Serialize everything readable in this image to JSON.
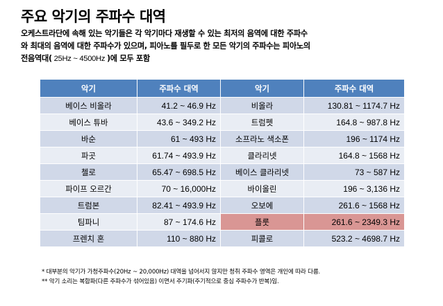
{
  "title": "주요 악기의 주파수 대역",
  "intro": {
    "line1": "오케스트라단에 속해 있는 악기들은 각 악기마다 재생할 수 있는 최저의 음역에 대한 주파수",
    "line2": "와 최대의 음역에 대한 주파수가 있으며, 피아노를 필두로 한 모든 악기의 주파수는 피아노의",
    "line3_pre": "전음역대(",
    "line3_range": " 25Hz ~ 4500Hz ",
    "line3_post": ")에 모두 포함"
  },
  "table": {
    "headers": [
      "악기",
      "주파수 대역",
      "악기",
      "주파수 대역"
    ],
    "rows": [
      {
        "i1": "베이스 비올라",
        "f1": "41.2 ~ 46.9 Hz",
        "i2": "비올라",
        "f2": "130.81 ~ 1174.7 Hz"
      },
      {
        "i1": "베이스 튜바",
        "f1": "43.6 ~ 349.2 Hz",
        "i2": "트럼펫",
        "f2": "164.8 ~ 987.8 Hz"
      },
      {
        "i1": "바순",
        "f1": "61 ~ 493 Hz",
        "i2": "소프라노 색소폰",
        "f2": "196 ~ 1174 Hz"
      },
      {
        "i1": "파곳",
        "f1": "61.74 ~ 493.9 Hz",
        "i2": "클라리넷",
        "f2": "164.8 ~ 1568 Hz"
      },
      {
        "i1": "첼로",
        "f1": "65.47 ~ 698.5 Hz",
        "i2": "베이스 클라리넷",
        "f2": "73 ~ 587 Hz"
      },
      {
        "i1": "파이프 오르간",
        "f1": "70 ~ 16,000Hz",
        "i2": "바이올린",
        "f2": "196 ~ 3,136 Hz"
      },
      {
        "i1": "트럼본",
        "f1": "82.41 ~ 493.9 Hz",
        "i2": "오보에",
        "f2": "261.6 ~ 1568 Hz"
      },
      {
        "i1": "팀파니",
        "f1": "87 ~ 174.6 Hz",
        "i2": "플룻",
        "f2": "261.6 ~ 2349.3 Hz"
      },
      {
        "i1": "프렌치 혼",
        "f1": "110 ~ 880 Hz",
        "i2": "피콜로",
        "f2": "523.2 ~ 4698.7 Hz"
      }
    ],
    "highlighted_row_index": 7,
    "colors": {
      "header": "#4f81bd",
      "row_dark": "#d0d8e8",
      "row_light": "#e9edf4",
      "highlight": "#d99694"
    }
  },
  "notes": {
    "note1": "* 대부분의 악기가 가청주파수(20Hz ~ 20,000Hz) 대역을 넘어서지 않지만 청취 주파수 영역은 개인에 따라 다름.",
    "note2": "** 악기 소리는 복합파(다른 주파수가 섞어있음) 이면서 주기파(주기적으로 중심 주파수가 반복)임."
  }
}
